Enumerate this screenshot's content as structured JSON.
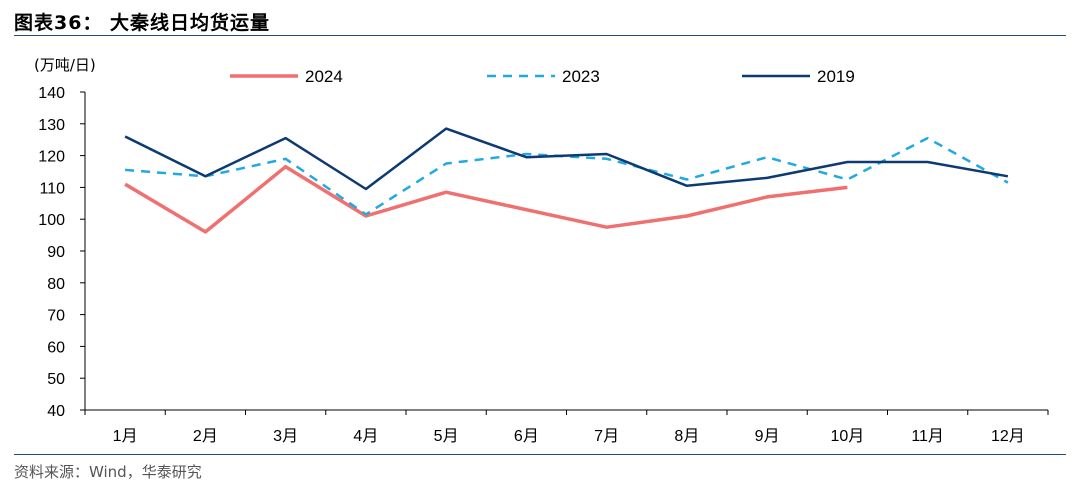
{
  "figure_title": "图表36：   大秦线日均货运量",
  "source": "资料来源：Wind，华泰研究",
  "chart_data": {
    "type": "line",
    "ylabel": "(万吨/日)",
    "categories": [
      "1月",
      "2月",
      "3月",
      "4月",
      "5月",
      "6月",
      "7月",
      "8月",
      "9月",
      "10月",
      "11月",
      "12月"
    ],
    "ylim": [
      40,
      140
    ],
    "yticks": [
      40,
      50,
      60,
      70,
      80,
      90,
      100,
      110,
      120,
      130,
      140
    ],
    "grid": false,
    "legend_position": "top",
    "series": [
      {
        "name": "2024",
        "color": "#f07070",
        "dash": "solid",
        "values": [
          111,
          96,
          116.5,
          101,
          108.5,
          null,
          97.5,
          101,
          107,
          110,
          null,
          null
        ]
      },
      {
        "name": "2023",
        "color": "#21a9e1",
        "dash": "dashed",
        "values": [
          115.5,
          113.5,
          119,
          101.5,
          117.5,
          120.5,
          119,
          112.5,
          119.5,
          112.5,
          125.5,
          111.5
        ]
      },
      {
        "name": "2019",
        "color": "#0d3a72",
        "dash": "solid",
        "values": [
          126,
          113.5,
          125.5,
          109.5,
          128.5,
          119.5,
          120.5,
          110.5,
          113,
          118,
          118,
          113.5
        ]
      }
    ]
  }
}
